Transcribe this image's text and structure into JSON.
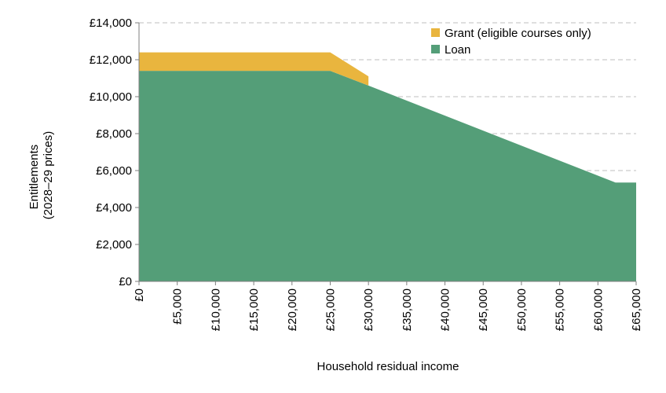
{
  "chart_data": {
    "type": "area",
    "stacked": true,
    "xlabel": "Household residual income",
    "ylabel_lines": [
      "Entitlements",
      "(2028–29 prices)"
    ],
    "xlim": [
      0,
      65000
    ],
    "ylim": [
      0,
      14000
    ],
    "x_ticks": [
      0,
      5000,
      10000,
      15000,
      20000,
      25000,
      30000,
      35000,
      40000,
      45000,
      50000,
      55000,
      60000,
      65000
    ],
    "x_tick_labels": [
      "£0",
      "£5,000",
      "£10,000",
      "£15,000",
      "£20,000",
      "£25,000",
      "£30,000",
      "£35,000",
      "£40,000",
      "£45,000",
      "£50,000",
      "£55,000",
      "£60,000",
      "£65,000"
    ],
    "y_ticks": [
      0,
      2000,
      4000,
      6000,
      8000,
      10000,
      12000,
      14000
    ],
    "y_tick_labels": [
      "£0",
      "£2,000",
      "£4,000",
      "£6,000",
      "£8,000",
      "£10,000",
      "£12,000",
      "£14,000"
    ],
    "grid": true,
    "legend_position": "top-right",
    "series": [
      {
        "name": "Loan",
        "color": "#549e78",
        "points": [
          [
            0,
            11400
          ],
          [
            25000,
            11400
          ],
          [
            30000,
            10600
          ],
          [
            62300,
            5350
          ],
          [
            65000,
            5350
          ]
        ]
      },
      {
        "name": "Grant (eligible courses only)",
        "color": "#e9b53e",
        "points": [
          [
            0,
            1000
          ],
          [
            25000,
            1000
          ],
          [
            30000,
            500
          ],
          [
            30000,
            0
          ]
        ]
      }
    ]
  }
}
